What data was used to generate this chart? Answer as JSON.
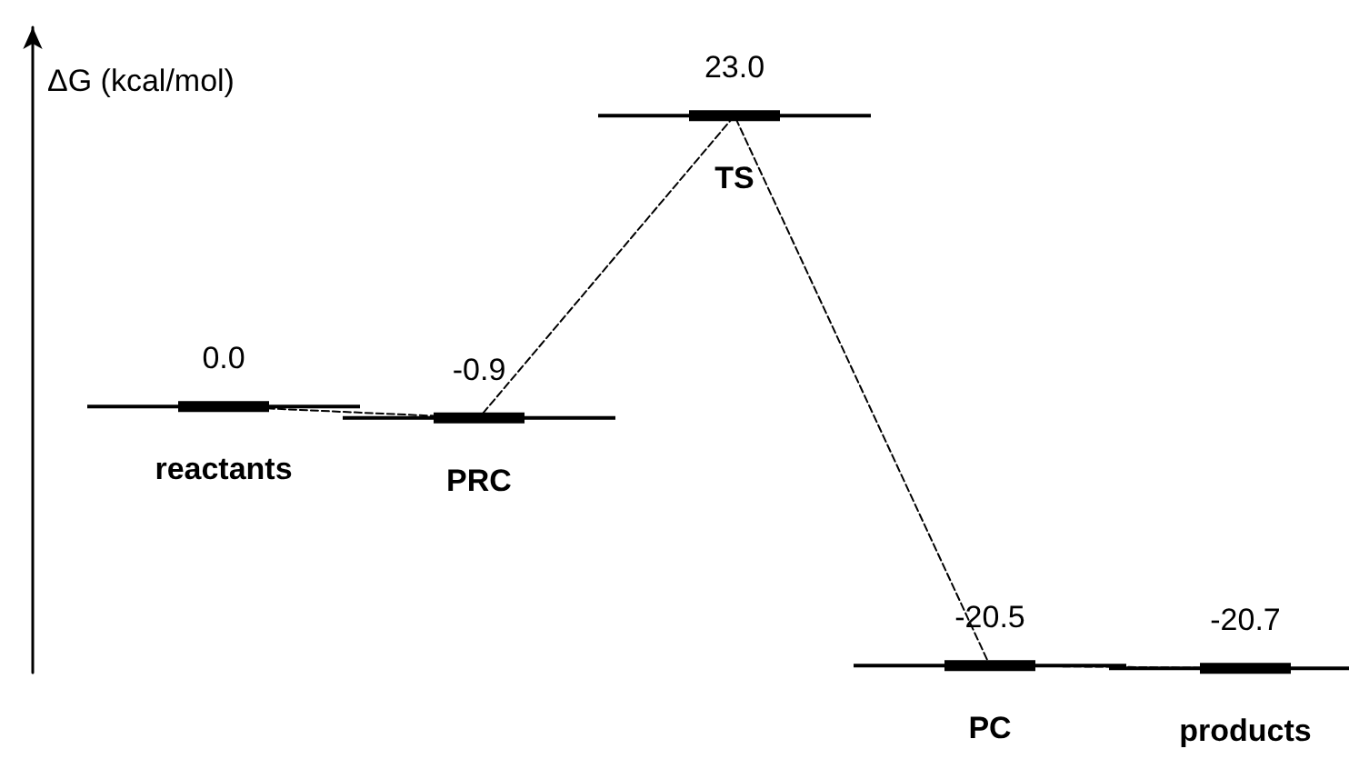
{
  "chart_data": {
    "type": "line",
    "ylabel": "ΔG (kcal/mol)",
    "categories": [
      "reactants",
      "PRC",
      "TS",
      "PC",
      "products"
    ],
    "values": [
      0,
      -0.9,
      23,
      -20.5,
      -20.7
    ],
    "value_labels": [
      "0.0",
      "-0.9",
      "23.0",
      "-20.5",
      "-20.7"
    ],
    "color": "#000000",
    "line_style": "dashed"
  }
}
